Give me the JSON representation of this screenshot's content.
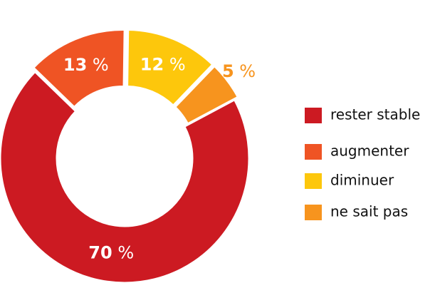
{
  "chart_data": {
    "type": "donut",
    "categories": [
      "rester stable",
      "augmenter",
      "diminuer",
      "ne sait pas"
    ],
    "values": [
      70,
      13,
      12,
      5
    ],
    "value_labels": [
      "70 %",
      "13 %",
      "12 %",
      "5 %"
    ],
    "colors": [
      "#cc1a22",
      "#ef5424",
      "#fdc70c",
      "#f7941e"
    ],
    "legend": "right"
  }
}
